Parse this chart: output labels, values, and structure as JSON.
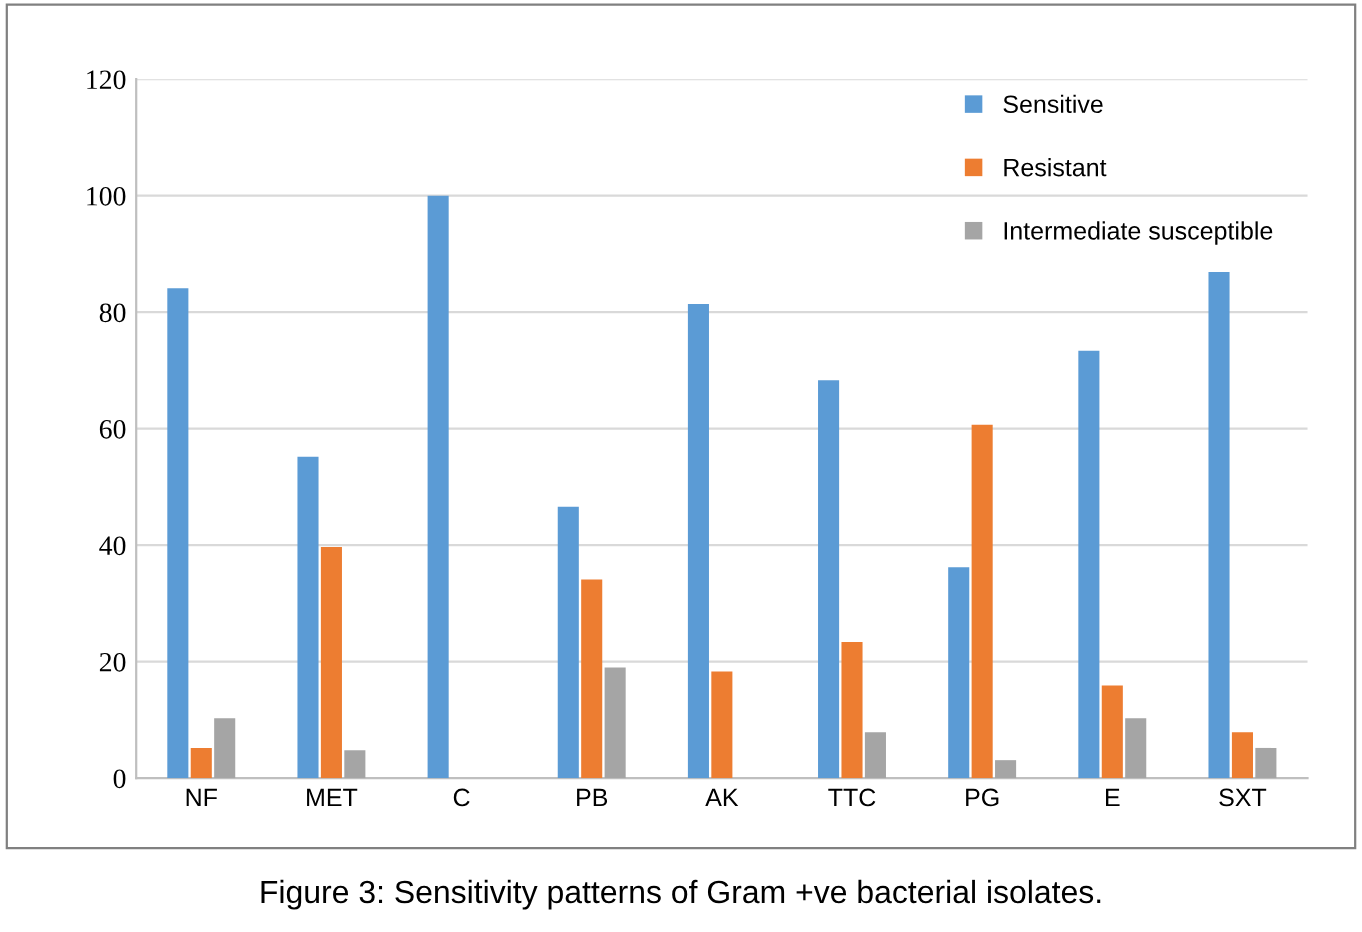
{
  "chart_data": {
    "type": "bar",
    "categories": [
      "NF",
      "MET",
      "C",
      "PB",
      "AK",
      "TTC",
      "PG",
      "E",
      "SXT"
    ],
    "series": [
      {
        "name": "Sensitive",
        "color": "#5b9bd5",
        "values": [
          84.1,
          55.2,
          100,
          46.6,
          81.4,
          68.3,
          36.2,
          73.4,
          86.9
        ]
      },
      {
        "name": "Resistant",
        "color": "#ed7d31",
        "values": [
          5.2,
          39.7,
          0,
          34.1,
          18.3,
          23.4,
          60.7,
          15.9,
          7.9
        ]
      },
      {
        "name": "Intermediate susceptible",
        "color": "#a5a5a5",
        "values": [
          10.3,
          4.8,
          0,
          19.0,
          0,
          7.9,
          3.1,
          10.3,
          5.2
        ]
      }
    ],
    "ylim": [
      0,
      120
    ],
    "yticks": [
      0,
      20,
      40,
      60,
      80,
      100,
      120
    ],
    "grid": "y",
    "legend": "top right",
    "annotations": [
      "Figure 3: Sensitivity patterns of Gram +ve bacterial isolates."
    ]
  }
}
